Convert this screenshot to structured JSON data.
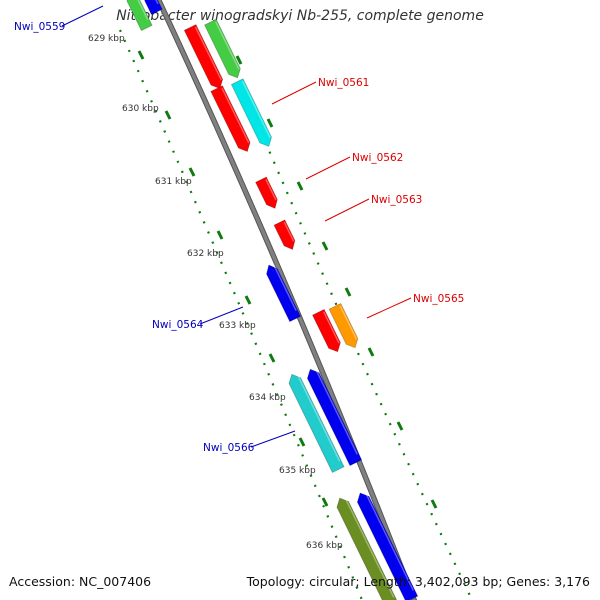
{
  "title": "Nitrobacter winogradskyi Nb-255, complete genome",
  "accession": "Accession: NC_007406",
  "info": "Topology: circular; Length: 3,402,093 bp; Genes: 3,176",
  "colors": {
    "backbone": "#808080",
    "tick": "#0f7a0f",
    "label_forward": "#dd0000",
    "label_reverse": "#0000bb",
    "red": "#ff0000",
    "green": "#44cc44",
    "cyan": "#00e6e6",
    "blue": "#0000ee",
    "orange": "#ff9900",
    "teal": "#22cccc",
    "olive": "#6b8e23"
  },
  "kbp_labels": [
    "629 kbp",
    "630 kbp",
    "631 kbp",
    "632 kbp",
    "633 kbp",
    "634 kbp",
    "635 kbp",
    "636 kbp"
  ],
  "gene_labels": [
    {
      "id": "Nwi_0559",
      "strand": "reverse"
    },
    {
      "id": "Nwi_0561",
      "strand": "forward"
    },
    {
      "id": "Nwi_0562",
      "strand": "forward"
    },
    {
      "id": "Nwi_0563",
      "strand": "forward"
    },
    {
      "id": "Nwi_0564",
      "strand": "reverse"
    },
    {
      "id": "Nwi_0565",
      "strand": "forward"
    },
    {
      "id": "Nwi_0566",
      "strand": "reverse"
    }
  ]
}
